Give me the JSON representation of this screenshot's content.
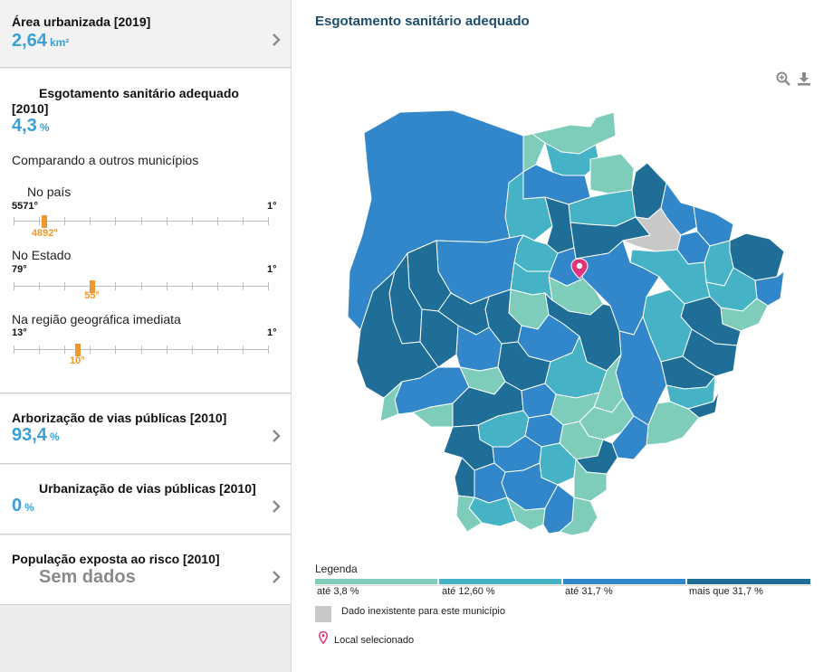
{
  "sidebar": {
    "area": {
      "title": "Área urbanizada [2019]",
      "value": "2,64",
      "unit": "km²"
    },
    "sewage": {
      "title_line1": "Esgotamento sanitário adequado",
      "title_line2": "[2010]",
      "value": "4,3",
      "unit": "%",
      "compare_title": "Comparando a outros municípios",
      "rankings": [
        {
          "label": "No país",
          "worst": "5571°",
          "best": "1°",
          "value": "4892°",
          "position": 0.1219
        },
        {
          "label": "No Estado",
          "worst": "79°",
          "best": "1°",
          "value": "55°",
          "position": 0.3077
        },
        {
          "label": "Na região geográfica imediata",
          "worst": "13°",
          "best": "1°",
          "value": "10°",
          "position": 0.25
        }
      ]
    },
    "trees": {
      "title": "Arborização de vias públicas [2010]",
      "value": "93,4",
      "unit": "%"
    },
    "urbanization": {
      "title": "Urbanização de vias públicas [2010]",
      "value": "0",
      "unit": "%"
    },
    "risk": {
      "title": "População exposta ao risco [2010]",
      "value": "Sem dados"
    }
  },
  "map": {
    "title": "Esgotamento sanitário adequado",
    "tools": {
      "zoom": "zoom-in-icon",
      "download": "download-icon"
    },
    "colors": {
      "c1": "#7ecdbb",
      "c2": "#45b3c5",
      "c3": "#3187c9",
      "c4": "#1f6e97",
      "none": "#c8c8c8",
      "marker": "#e0347a"
    }
  },
  "legend": {
    "title": "Legenda",
    "classes": [
      {
        "label": "até 3,8 %",
        "color": "#7ecdbb"
      },
      {
        "label": "até 12,60 %",
        "color": "#45b3c5"
      },
      {
        "label": "até 31,7 %",
        "color": "#3187c9"
      },
      {
        "label": "mais que 31,7 %",
        "color": "#1f6e97"
      }
    ],
    "no_data": "Dado inexistente para este município",
    "selected": "Local selecionado"
  }
}
